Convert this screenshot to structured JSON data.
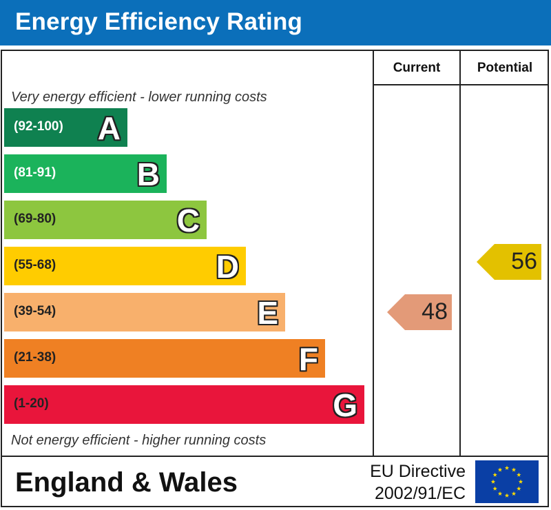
{
  "header": {
    "title": "Energy Efficiency Rating"
  },
  "columns": {
    "current": "Current",
    "potential": "Potential"
  },
  "notes": {
    "top": "Very energy efficient - lower running costs",
    "bottom": "Not energy efficient - higher running costs"
  },
  "chart_data": {
    "type": "bar",
    "title": "Energy Efficiency Rating",
    "categories": [
      "A",
      "B",
      "C",
      "D",
      "E",
      "F",
      "G"
    ],
    "bands": [
      {
        "letter": "A",
        "range": "(92-100)",
        "color": "#0f8150",
        "dark_text": false
      },
      {
        "letter": "B",
        "range": "(81-91)",
        "color": "#1bb35b",
        "dark_text": false
      },
      {
        "letter": "C",
        "range": "(69-80)",
        "color": "#8dc63f",
        "dark_text": true
      },
      {
        "letter": "D",
        "range": "(55-68)",
        "color": "#ffcc00",
        "dark_text": true
      },
      {
        "letter": "E",
        "range": "(39-54)",
        "color": "#f8b06c",
        "dark_text": true
      },
      {
        "letter": "F",
        "range": "(21-38)",
        "color": "#ef8023",
        "dark_text": true
      },
      {
        "letter": "G",
        "range": "(1-20)",
        "color": "#e9153b",
        "dark_text": true
      }
    ],
    "series": [
      {
        "name": "Current",
        "value": 48,
        "band": "E",
        "color": "#e39a78"
      },
      {
        "name": "Potential",
        "value": 56,
        "band": "D",
        "color": "#e3c100"
      }
    ]
  },
  "footer": {
    "country": "England & Wales",
    "directive_line1": "EU Directive",
    "directive_line2": "2002/91/EC",
    "flag_color": "#0a3fa5",
    "star_color": "#ffdd00"
  }
}
